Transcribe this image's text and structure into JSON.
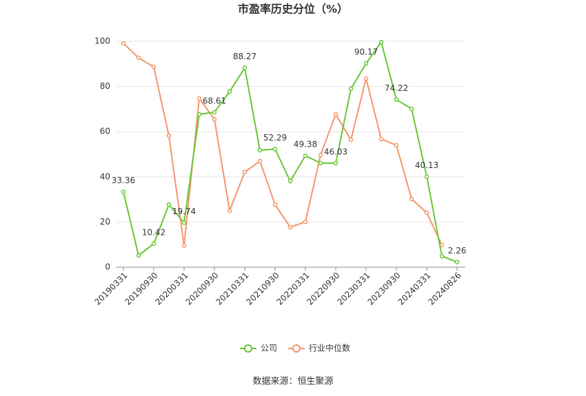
{
  "chart_data": {
    "type": "line",
    "title": "市盈率历史分位（%）",
    "source": "数据来源：恒生聚源",
    "categories": [
      "20190331",
      null,
      "20190930",
      null,
      "20200331",
      null,
      "20200930",
      null,
      "20210331",
      null,
      "20210930",
      null,
      "20220331",
      null,
      "20220930",
      null,
      "20230331",
      null,
      "20230930",
      null,
      "20240331",
      null,
      "20240826"
    ],
    "series": [
      {
        "name": "公司",
        "color": "#66c733",
        "values": [
          33.36,
          5.2,
          10.42,
          27.7,
          19.74,
          67.7,
          68.61,
          77.7,
          88.27,
          51.8,
          52.29,
          38.1,
          49.38,
          46.1,
          46.03,
          79.0,
          90.17,
          99.7,
          74.22,
          70.1,
          40.13,
          4.9,
          2.26
        ],
        "value_labels": [
          "33.36",
          null,
          "10.42",
          null,
          "19.74",
          null,
          "68.61",
          null,
          "88.27",
          null,
          "52.29",
          null,
          "49.38",
          null,
          "46.03",
          null,
          "90.17",
          null,
          "74.22",
          null,
          "40.13",
          null,
          "2.26"
        ]
      },
      {
        "name": "行业中位数",
        "color": "#f4956a",
        "values": [
          99.1,
          92.7,
          88.7,
          58.2,
          9.5,
          74.7,
          65.5,
          25.0,
          42.1,
          47.0,
          27.7,
          17.7,
          20.1,
          49.7,
          67.7,
          56.4,
          83.5,
          56.7,
          54.0,
          30.2,
          24.1,
          9.8,
          null
        ]
      }
    ],
    "ylim": [
      0,
      100
    ],
    "yticks": [
      0,
      20,
      40,
      60,
      80,
      100
    ],
    "grid": true
  }
}
